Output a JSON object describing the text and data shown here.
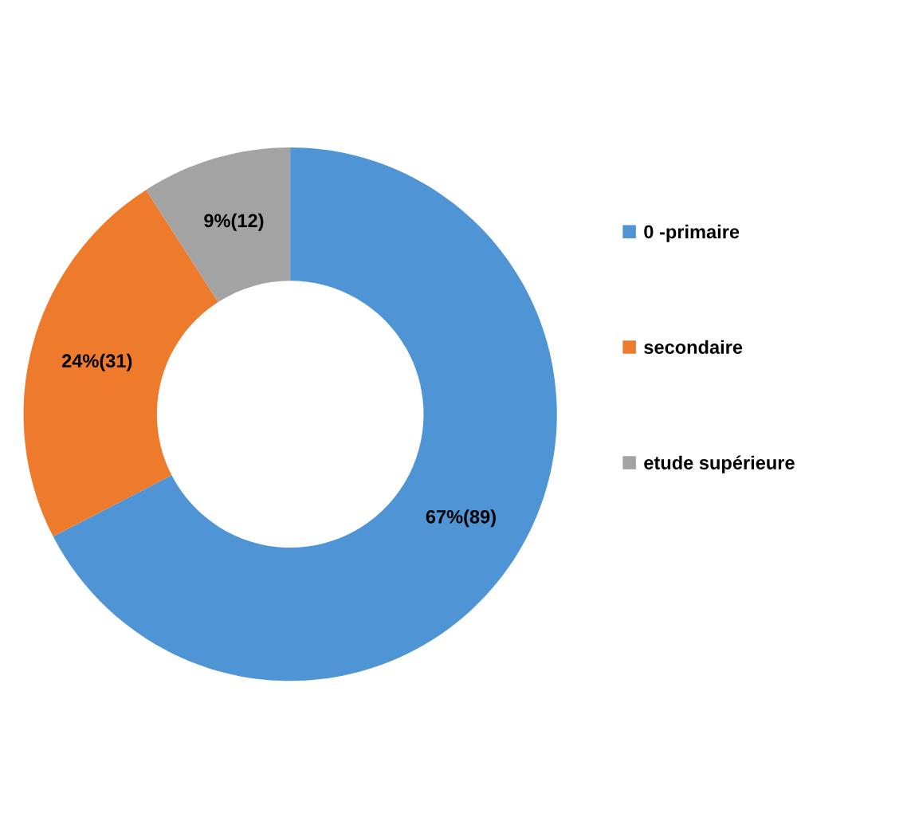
{
  "chart_data": {
    "type": "donut",
    "categories": [
      "0 -primaire",
      "secondaire",
      "etude supérieure"
    ],
    "values": [
      89,
      31,
      12
    ],
    "colors": [
      "#4f95d6",
      "#ee7a2c",
      "#a3a3a3"
    ],
    "value_labels": [
      "67%(89)",
      "24%(31)",
      "9%(12)"
    ],
    "legend": "right"
  }
}
